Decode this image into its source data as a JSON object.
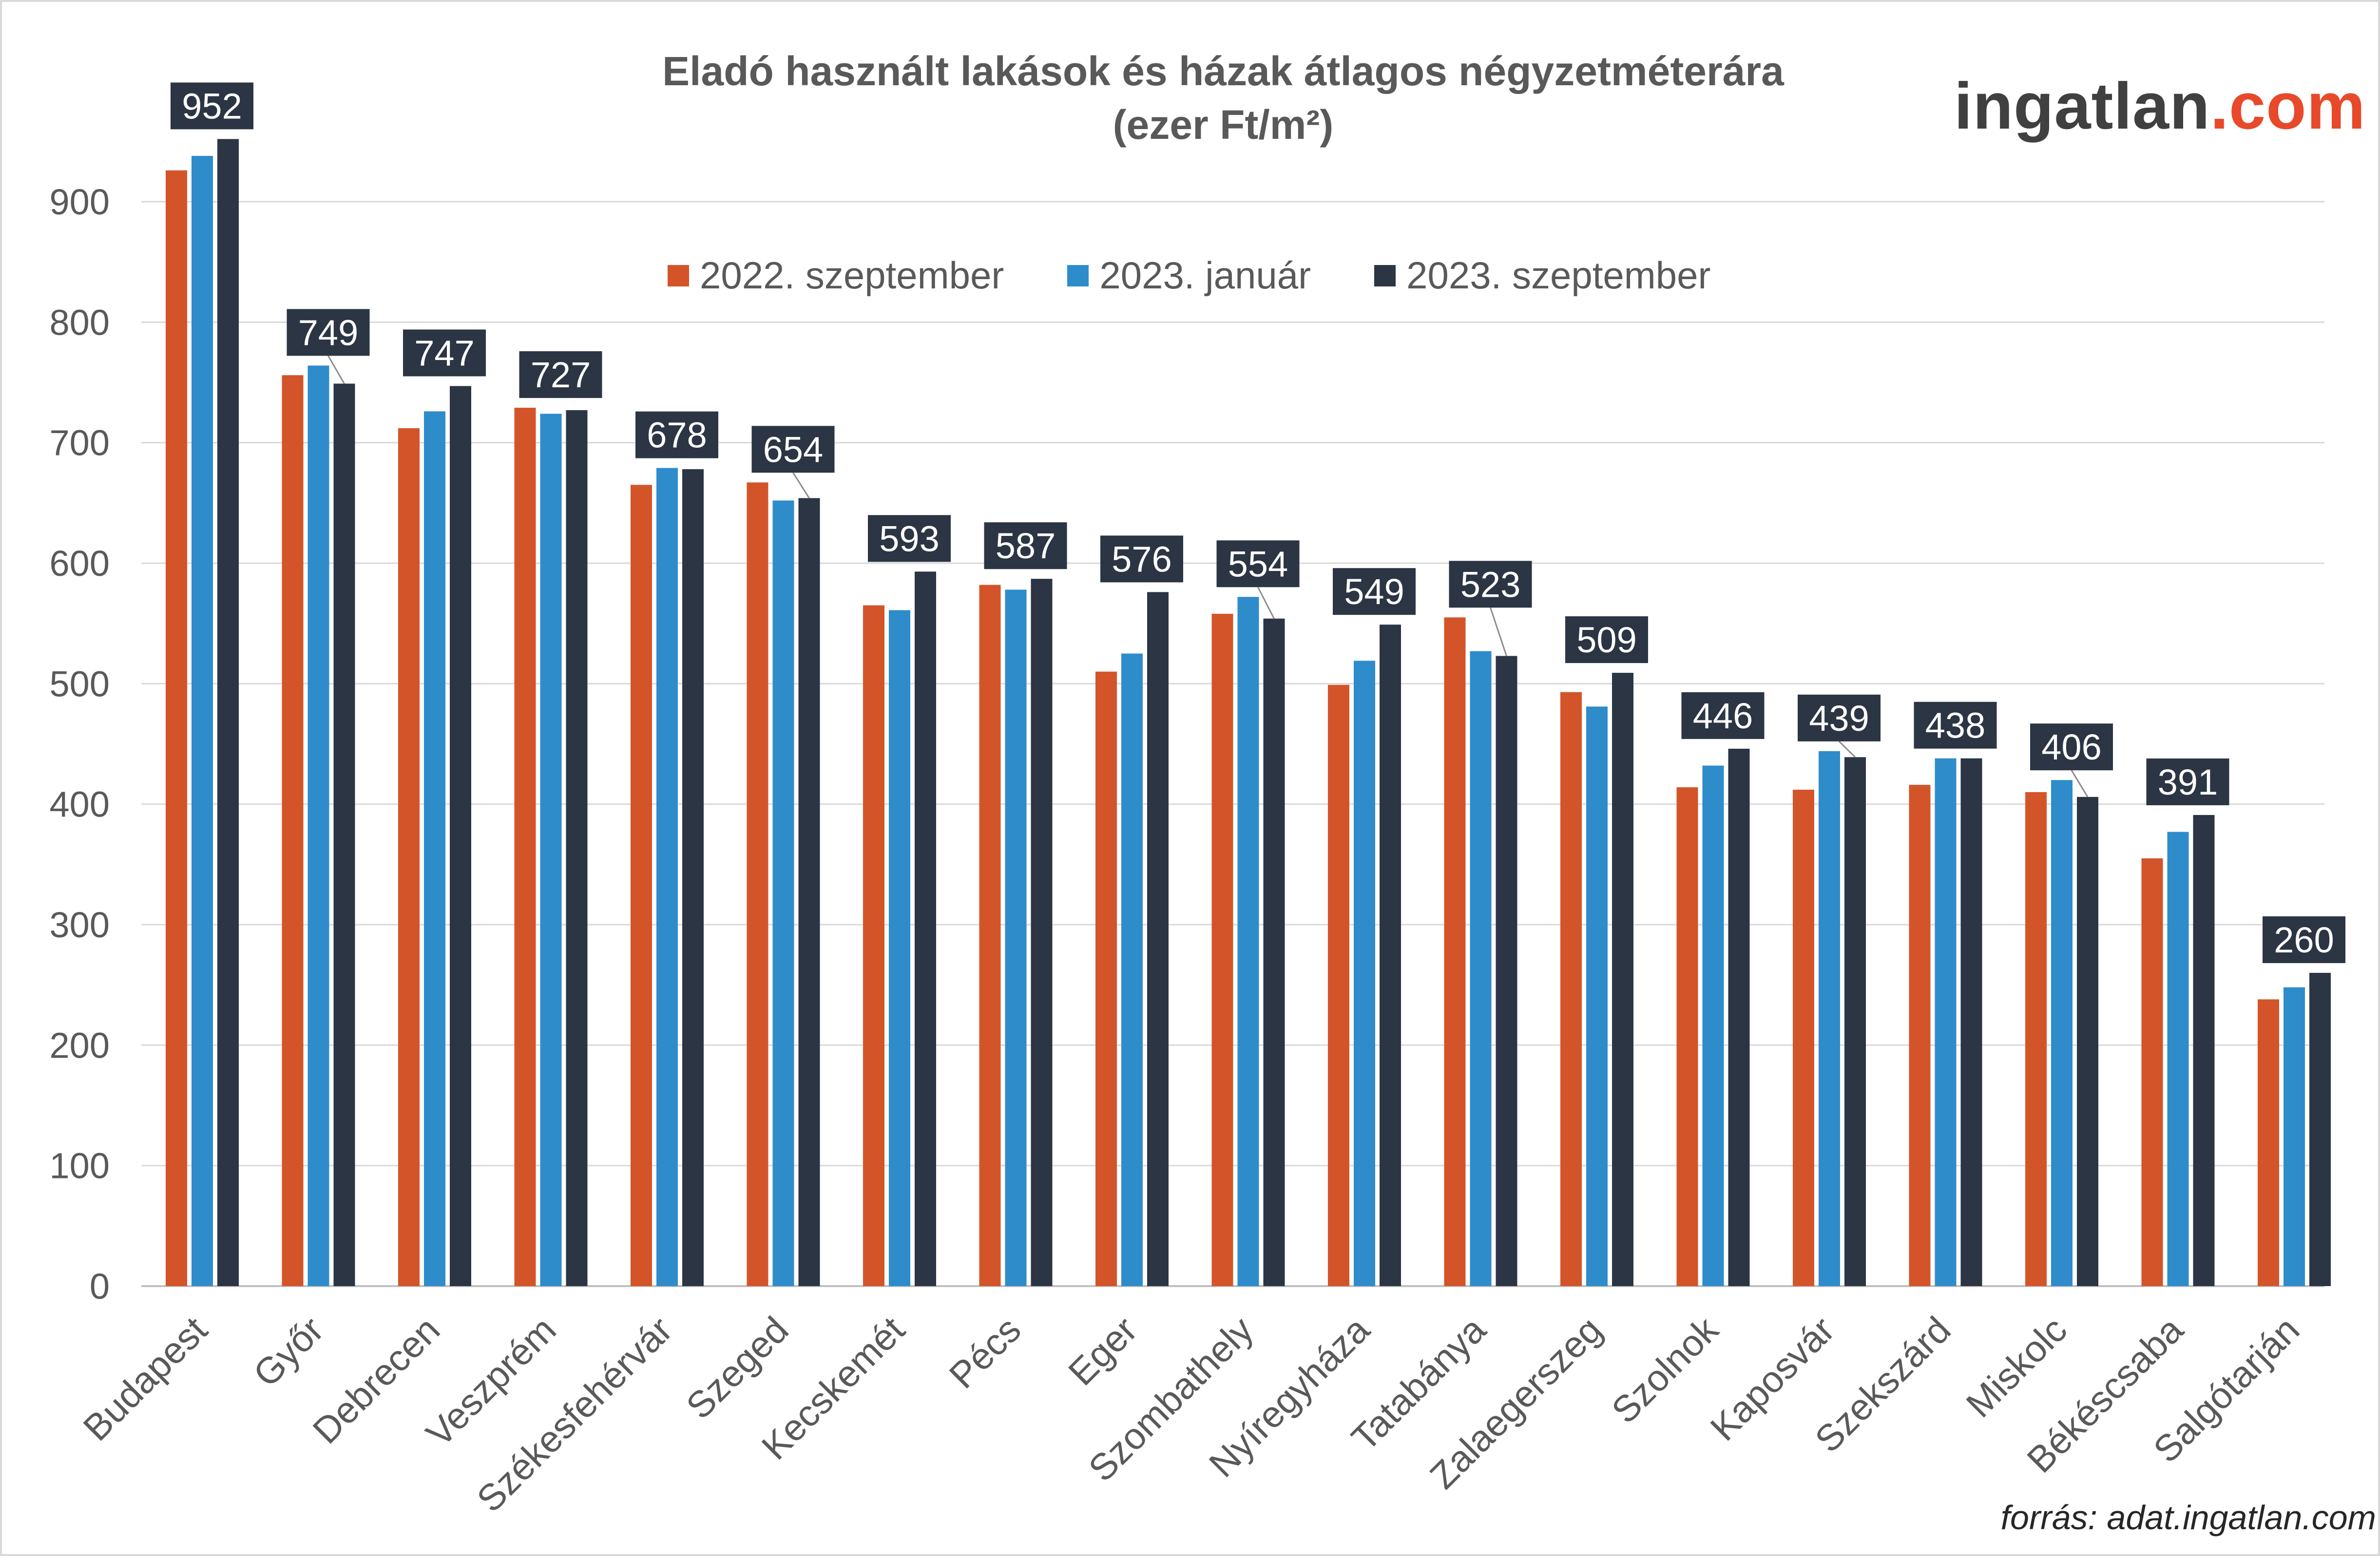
{
  "logo": {
    "part1": "ingatlan",
    "part2": ".com"
  },
  "source": "forrás: adat.ingatlan.com",
  "colors": {
    "s1": "#d4542a",
    "s2": "#2e8ccb",
    "s3": "#2b3544",
    "label_bg": "#2b3544",
    "grid": "#d9d9d9",
    "axis_text": "#595959"
  },
  "chart_data": {
    "type": "bar",
    "title": "Eladó használt lakások és házak átlagos négyzetméterára",
    "subtitle": "(ezer Ft/m²)",
    "ylim": [
      0,
      950
    ],
    "yticks": [
      0,
      100,
      200,
      300,
      400,
      500,
      600,
      700,
      800,
      900
    ],
    "grid": true,
    "legend_position": "top-center",
    "categories": [
      "Budapest",
      "Győr",
      "Debrecen",
      "Veszprém",
      "Székesfehérvár",
      "Szeged",
      "Kecskemét",
      "Pécs",
      "Eger",
      "Szombathely",
      "Nyíregyháza",
      "Tatabánya",
      "Zalaegerszeg",
      "Szolnok",
      "Kaposvár",
      "Szekszárd",
      "Miskolc",
      "Békéscsaba",
      "Salgótarján"
    ],
    "series": [
      {
        "name": "2022. szeptember",
        "values": [
          926,
          756,
          712,
          729,
          665,
          667,
          565,
          582,
          510,
          558,
          499,
          555,
          493,
          414,
          412,
          416,
          410,
          355,
          238
        ]
      },
      {
        "name": "2023. január",
        "values": [
          938,
          764,
          726,
          724,
          679,
          652,
          561,
          578,
          525,
          572,
          519,
          527,
          481,
          432,
          444,
          438,
          420,
          377,
          248
        ]
      },
      {
        "name": "2023. szeptember",
        "values": [
          952,
          749,
          747,
          727,
          678,
          654,
          593,
          587,
          576,
          554,
          549,
          523,
          509,
          446,
          439,
          438,
          406,
          391,
          260
        ]
      }
    ],
    "data_labels": [
      "952",
      "749",
      "747",
      "727",
      "678",
      "654",
      "593",
      "587",
      "576",
      "554",
      "549",
      "523",
      "509",
      "446",
      "439",
      "438",
      "406",
      "391",
      "260"
    ]
  }
}
